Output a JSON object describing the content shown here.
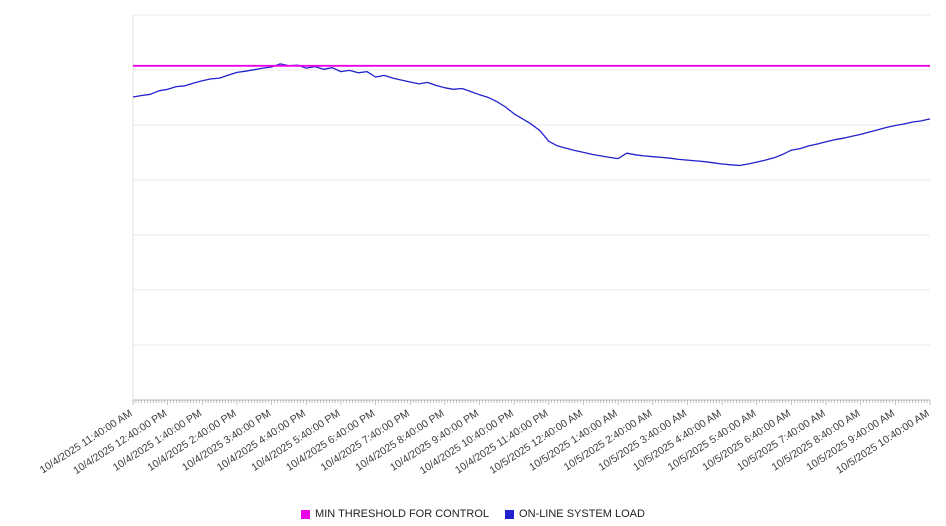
{
  "chart_data": {
    "type": "line",
    "title": "",
    "xlabel": "",
    "ylabel": "",
    "ylim": [
      0,
      100
    ],
    "y_axis_tick_labels_visible": false,
    "grid": "horizontal",
    "legend_position": "bottom",
    "categories": [
      "10/4/2025 11:40:00 AM",
      "10/4/2025 12:40:00 PM",
      "10/4/2025 1:40:00 PM",
      "10/4/2025 2:40:00 PM",
      "10/4/2025 3:40:00 PM",
      "10/4/2025 4:40:00 PM",
      "10/4/2025 5:40:00 PM",
      "10/4/2025 6:40:00 PM",
      "10/4/2025 7:40:00 PM",
      "10/4/2025 8:40:00 PM",
      "10/4/2025 9:40:00 PM",
      "10/4/2025 10:40:00 PM",
      "10/4/2025 11:40:00 PM",
      "10/5/2025 12:40:00 AM",
      "10/5/2025 1:40:00 AM",
      "10/5/2025 2:40:00 AM",
      "10/5/2025 3:40:00 AM",
      "10/5/2025 4:40:00 AM",
      "10/5/2025 5:40:00 AM",
      "10/5/2025 6:40:00 AM",
      "10/5/2025 7:40:00 AM",
      "10/5/2025 8:40:00 AM",
      "10/5/2025 9:40:00 AM",
      "10/5/2025 10:40:00 AM"
    ],
    "series": [
      {
        "name": "MIN THRESHOLD FOR CONTROL",
        "type": "threshold",
        "color": "#e800e8",
        "value": 86.8
      },
      {
        "name": "ON-LINE SYSTEM LOAD",
        "type": "line",
        "color": "#2222cc",
        "values": [
          78.7,
          79.1,
          79.4,
          80.3,
          80.7,
          81.4,
          81.6,
          82.3,
          82.9,
          83.4,
          83.6,
          84.4,
          85.1,
          85.4,
          85.8,
          86.2,
          86.5,
          87.3,
          86.8,
          87.0,
          86.2,
          86.6,
          85.9,
          86.3,
          85.3,
          85.6,
          85.0,
          85.3,
          83.9,
          84.3,
          83.6,
          83.1,
          82.6,
          82.1,
          82.5,
          81.7,
          81.1,
          80.7,
          80.9,
          80.1,
          79.3,
          78.6,
          77.5,
          76.1,
          74.3,
          73.0,
          71.6,
          69.9,
          67.2,
          66.0,
          65.4,
          64.8,
          64.3,
          63.8,
          63.4,
          63.0,
          62.7,
          64.1,
          63.7,
          63.4,
          63.2,
          63.0,
          62.8,
          62.5,
          62.3,
          62.1,
          61.9,
          61.6,
          61.3,
          61.1,
          60.9,
          61.3,
          61.8,
          62.3,
          62.9,
          63.8,
          64.9,
          65.3,
          66.0,
          66.5,
          67.1,
          67.6,
          68.0,
          68.5,
          69.0,
          69.6,
          70.2,
          70.8,
          71.3,
          71.7,
          72.2,
          72.5,
          73.0
        ]
      }
    ]
  }
}
